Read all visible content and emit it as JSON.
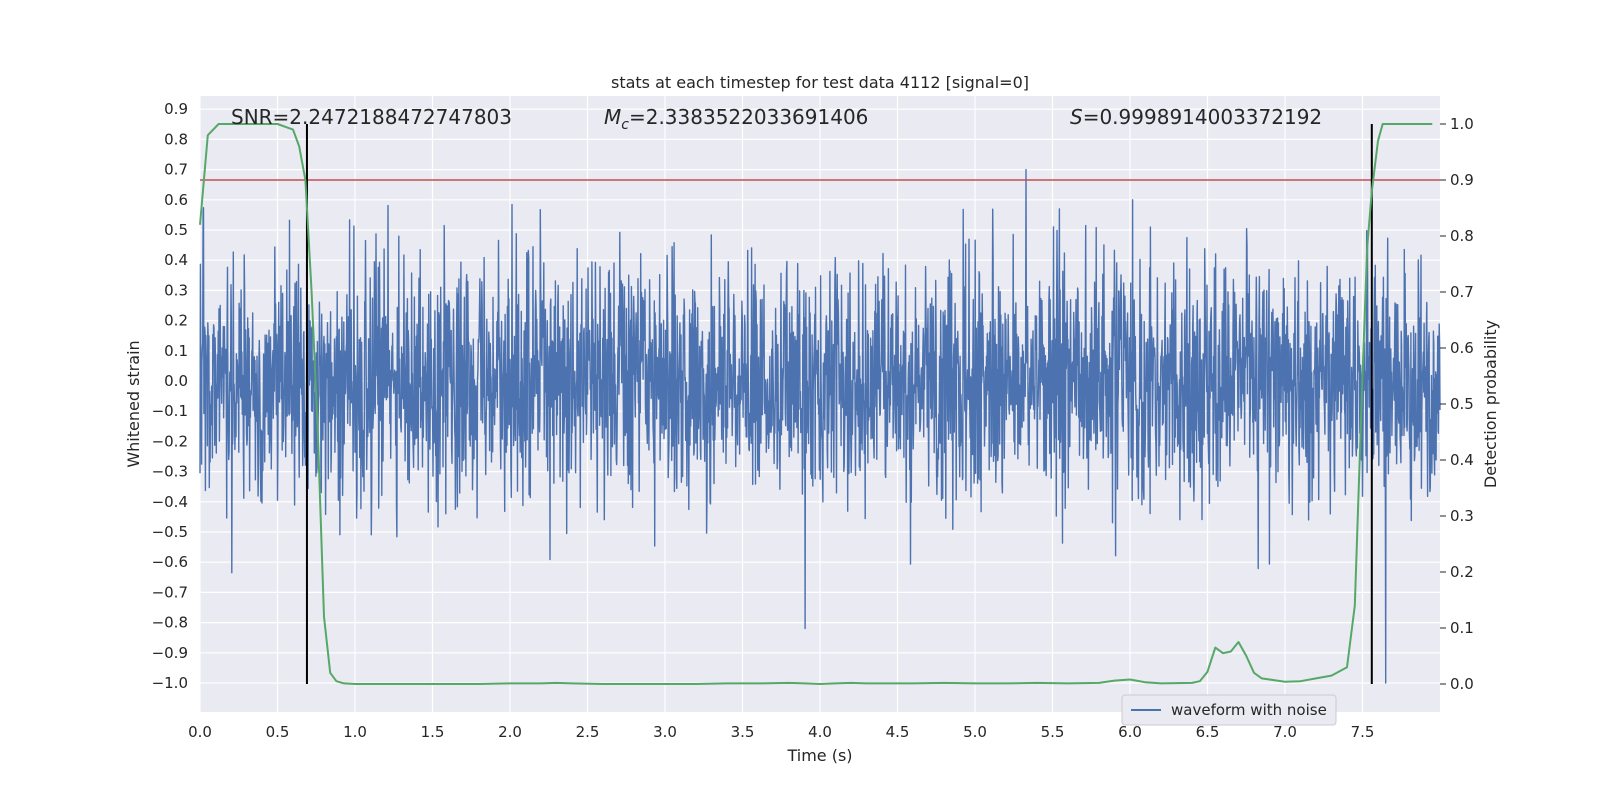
{
  "chart_data": {
    "type": "line",
    "title": "stats at each timestep for test data 4112 [signal=0]",
    "xlabel": "Time (s)",
    "ylabel": "Whitened strain",
    "ylabel_right": "Detection probability",
    "xlim": [
      0.0,
      8.0
    ],
    "ylim": [
      -1.1,
      0.95
    ],
    "ylim_right": [
      -0.05,
      1.05
    ],
    "x_ticks": [
      "0.0",
      "0.5",
      "1.0",
      "1.5",
      "2.0",
      "2.5",
      "3.0",
      "3.5",
      "4.0",
      "4.5",
      "5.0",
      "5.5",
      "6.0",
      "6.5",
      "7.0",
      "7.5"
    ],
    "y_ticks": [
      "0.9",
      "0.8",
      "0.7",
      "0.6",
      "0.5",
      "0.4",
      "0.3",
      "0.2",
      "0.1",
      "0.0",
      "−0.1",
      "−0.2",
      "−0.3",
      "−0.4",
      "−0.5",
      "−0.6",
      "−0.7",
      "−0.8",
      "−0.9",
      "−1.0"
    ],
    "y_ticks_right": [
      "1.0",
      "0.9",
      "0.8",
      "0.7",
      "0.6",
      "0.5",
      "0.4",
      "0.3",
      "0.2",
      "0.1",
      "0.0"
    ],
    "grid": true,
    "legend_position": "bottom-right",
    "annotations": {
      "snr": "SNR=2.2472188472747803",
      "mc_symbol": "M",
      "mc_subscript": "c",
      "mc_value": "=2.3383522033691406",
      "s_symbol": "S",
      "s_value": "=0.9998914003372192"
    },
    "threshold_right": 0.9,
    "threshold_color": "#c44e52",
    "vertical_lines_x": [
      0.69,
      7.56
    ],
    "series": [
      {
        "name": "waveform with noise",
        "color": "#4c72b0",
        "description_type": "noise",
        "x_range": [
          0.0,
          8.0
        ],
        "typical_amplitude": 0.28,
        "max_peak": 0.7,
        "max_peak_x": 5.33,
        "min_trough": -1.0,
        "min_trough_x": 7.65
      },
      {
        "color": "#55a868",
        "axis": "right",
        "x": [
          0.0,
          0.05,
          0.12,
          0.2,
          0.3,
          0.4,
          0.5,
          0.6,
          0.64,
          0.68,
          0.72,
          0.76,
          0.8,
          0.84,
          0.88,
          0.93,
          1.0,
          1.2,
          1.5,
          1.8,
          2.0,
          2.1,
          2.2,
          2.3,
          2.4,
          2.6,
          2.8,
          3.0,
          3.2,
          3.4,
          3.6,
          3.8,
          3.9,
          4.0,
          4.1,
          4.2,
          4.3,
          4.4,
          4.6,
          4.8,
          5.0,
          5.2,
          5.4,
          5.6,
          5.8,
          5.9,
          6.0,
          6.1,
          6.2,
          6.4,
          6.45,
          6.5,
          6.55,
          6.6,
          6.65,
          6.7,
          6.75,
          6.8,
          6.85,
          6.9,
          6.95,
          7.0,
          7.1,
          7.2,
          7.3,
          7.4,
          7.45,
          7.5,
          7.53,
          7.56,
          7.6,
          7.63,
          7.66,
          7.7,
          7.8,
          7.95
        ],
        "values": [
          0.82,
          0.98,
          1.0,
          1.0,
          1.0,
          1.0,
          1.0,
          0.99,
          0.96,
          0.9,
          0.7,
          0.45,
          0.12,
          0.02,
          0.005,
          0.001,
          0.0,
          0.0,
          0.0,
          0.0,
          0.001,
          0.001,
          0.001,
          0.002,
          0.001,
          0.0,
          0.0,
          0.0,
          0.0,
          0.001,
          0.001,
          0.002,
          0.001,
          0.0,
          0.001,
          0.002,
          0.001,
          0.001,
          0.001,
          0.002,
          0.001,
          0.001,
          0.002,
          0.001,
          0.002,
          0.006,
          0.008,
          0.003,
          0.001,
          0.002,
          0.005,
          0.022,
          0.065,
          0.055,
          0.058,
          0.075,
          0.05,
          0.02,
          0.01,
          0.008,
          0.006,
          0.004,
          0.005,
          0.01,
          0.015,
          0.03,
          0.14,
          0.55,
          0.78,
          0.88,
          0.97,
          1.0,
          1.0,
          1.0,
          1.0,
          1.0
        ]
      }
    ]
  }
}
